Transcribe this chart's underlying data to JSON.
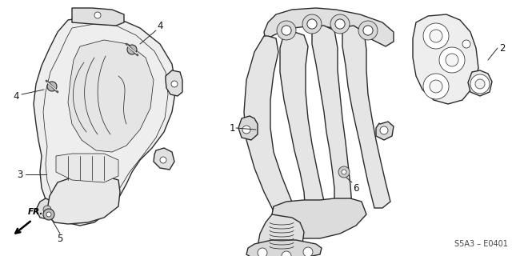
{
  "background_color": "#ffffff",
  "diagram_code": "S5A3 – E0401",
  "line_color": "#2a2a2a",
  "fill_color": "#f2f2f2",
  "text_color": "#111111",
  "lw_main": 1.0,
  "lw_thin": 0.55,
  "figsize": [
    6.4,
    3.2
  ],
  "dpi": 100
}
